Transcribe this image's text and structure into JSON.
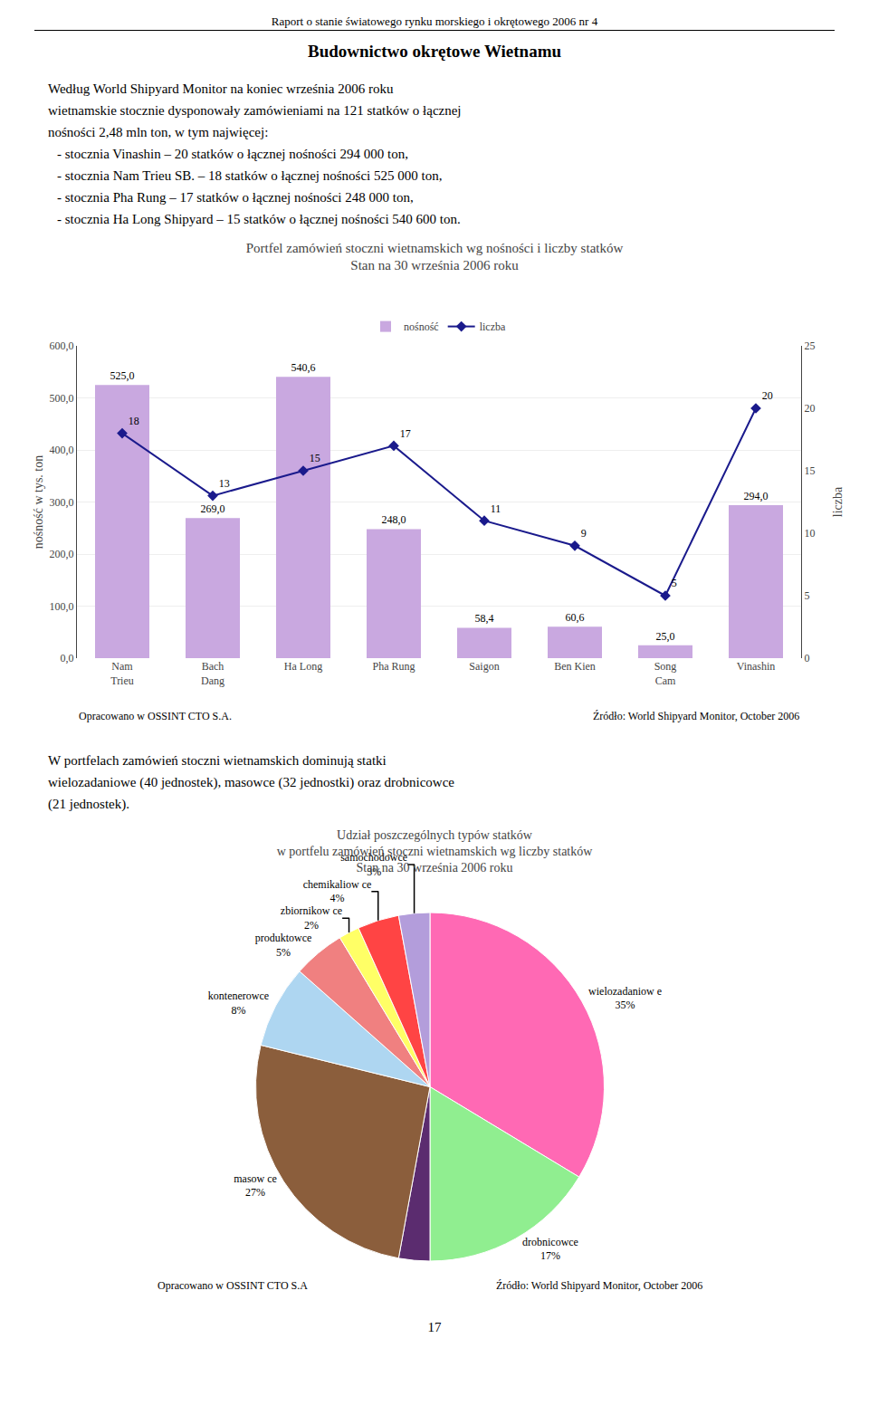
{
  "page": {
    "header": "Raport o stanie światowego rynku morskiego i okrętowego 2006 nr 4",
    "section_title": "Budownictwo okrętowe Wietnamu",
    "text_1": [
      "Według World Shipyard Monitor na koniec września 2006 roku",
      "wietnamskie stocznie dysponowały zamówieniami na 121 statków o łącznej",
      "nośności 2,48 mln ton, w tym najwięcej:",
      "-  stocznia Vinashin – 20 statków o łącznej nośności 294 000 ton,",
      "-  stocznia Nam Trieu SB. – 18 statków o łącznej nośności 525 000 ton,",
      "-  stocznia Pha Rung – 17 statków o łącznej nośności 248 000 ton,",
      "-  stocznia Ha Long Shipyard – 15 statków o łącznej nośności 540 600 ton."
    ],
    "text_2": [
      "W portfelach zamówień stoczni wietnamskich dominują statki",
      "wielozadaniowe (40 jednostek), masowce (32 jednostki) oraz drobnicowce",
      "(21 jednostek)."
    ],
    "page_number": "17"
  },
  "chart_data": [
    {
      "type": "bar",
      "title": "Portfel zamówień stoczni wietnamskich wg nośności i liczby statków",
      "subtitle": "Stan na 30 września 2006 roku",
      "categories": [
        "Nam\nTrieu",
        "Bach\nDang",
        "Ha Long",
        "Pha Rung",
        "Saigon",
        "Ben Kien",
        "Song\nCam",
        "Vinashin"
      ],
      "series": [
        {
          "name": "nośność",
          "type": "bar",
          "color": "#C9A8E0",
          "values": [
            525.0,
            269.0,
            540.6,
            248.0,
            58.4,
            60.6,
            25.0,
            294.0
          ],
          "value_labels": [
            "525,0",
            "269,0",
            "540,6",
            "248,0",
            "58,4",
            "60,6",
            "25,0",
            "294,0"
          ]
        },
        {
          "name": "liczba",
          "type": "line",
          "axis": "y2",
          "color": "#1A1A8C",
          "marker": "diamond",
          "values": [
            18,
            13,
            15,
            17,
            11,
            9,
            5,
            20
          ]
        }
      ],
      "ylabel": "nośność w tys. ton",
      "y2label": "liczba",
      "ylim": [
        0,
        600
      ],
      "yticks": [
        {
          "value": 0,
          "label": "0,0"
        },
        {
          "value": 100,
          "label": "100,0"
        },
        {
          "value": 200,
          "label": "200,0"
        },
        {
          "value": 300,
          "label": "300,0"
        },
        {
          "value": 400,
          "label": "400,0"
        },
        {
          "value": 500,
          "label": "500,0"
        },
        {
          "value": 600,
          "label": "600,0"
        }
      ],
      "y2lim": [
        0,
        25
      ],
      "y2ticks": [
        0,
        5,
        10,
        15,
        20,
        25
      ],
      "grid": true,
      "legend": "top",
      "data_labels": true,
      "annotations": [
        "Opracowano w OSSINT CTO S.A.",
        "Źródło: World Shipyard Monitor, October 2006"
      ]
    },
    {
      "type": "pie",
      "title": "Udział poszczególnych typów statków\nw portfelu zamówień stoczni wietnamskich wg liczby statków",
      "subtitle": "Stan na 30 września 2006 roku",
      "categories": [
        "wielozadaniow e",
        "drobnicowce",
        null,
        "masow ce",
        "kontenerowce",
        "produktowce",
        "zbiornikow ce",
        "chemikaliow ce",
        "samochodowce"
      ],
      "values": [
        35,
        17,
        3,
        27,
        8,
        5,
        2,
        4,
        3
      ],
      "value_labels": [
        "35%",
        "17%",
        null,
        "27%",
        "8%",
        "5%",
        "2%",
        "4%",
        "3%"
      ],
      "colors": [
        "#FF69B4",
        "#90EE90",
        "#5B2C6F",
        "#8B5E3C",
        "#AED6F1",
        "#F08080",
        "#FFFF66",
        "#FF4444",
        "#B39DDB"
      ],
      "data_labels": true,
      "annotations": [
        "Opracowano w OSSINT CTO S.A",
        "Źródło: World Shipyard Monitor, October 2006"
      ]
    }
  ]
}
